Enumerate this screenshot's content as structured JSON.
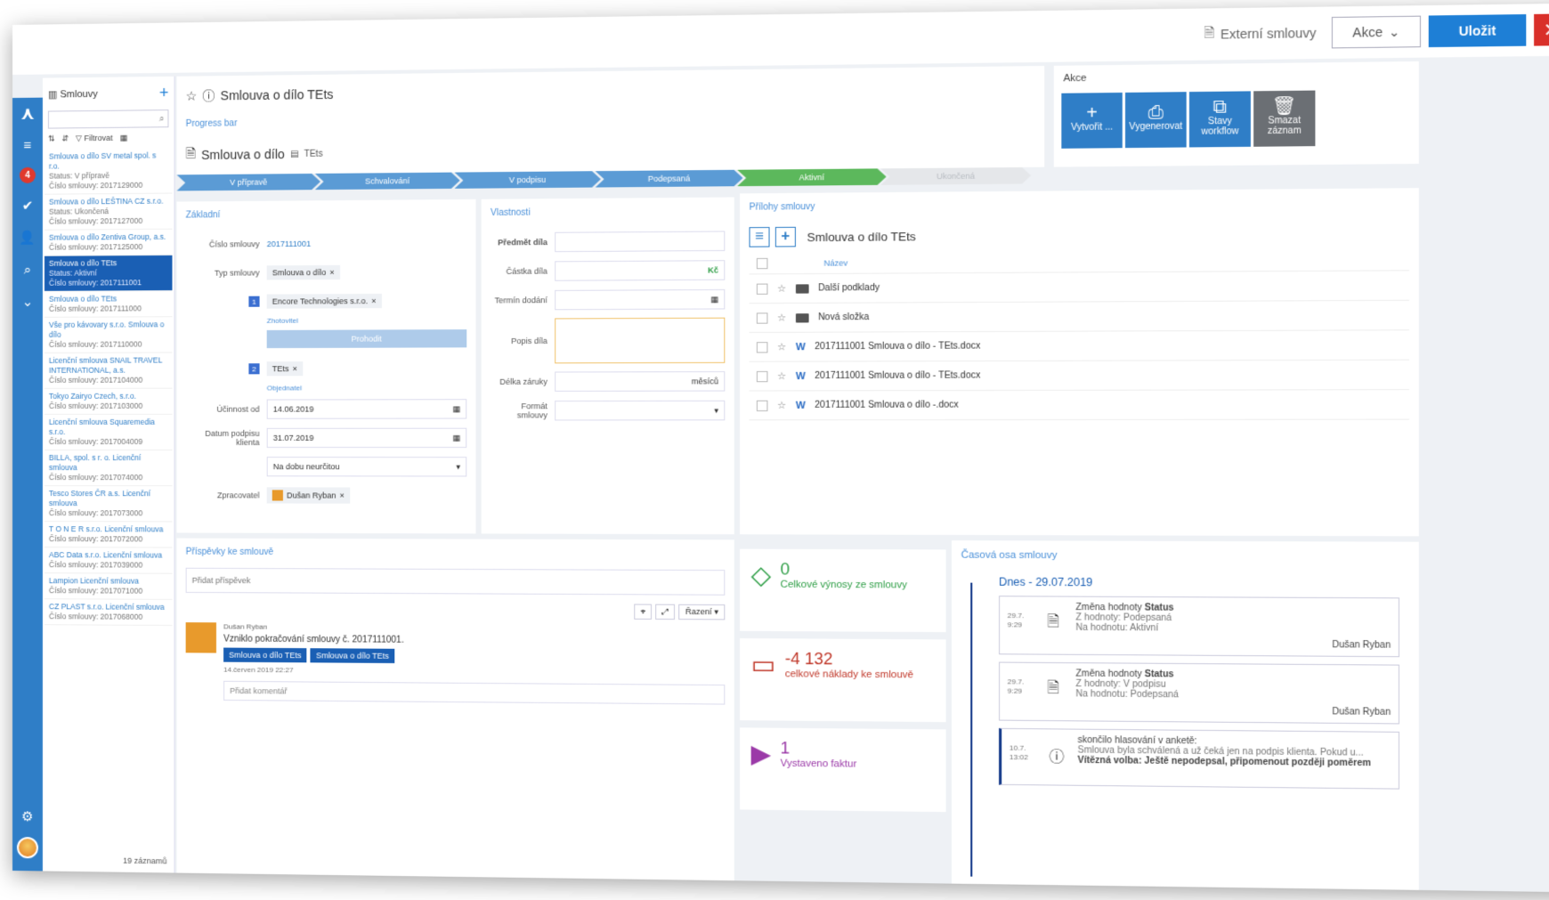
{
  "topbar": {
    "external_link": "Externí smlouvy",
    "akce_label": "Akce",
    "save_label": "Uložit",
    "close_label": "✕"
  },
  "rail": {
    "badge": "4"
  },
  "sidebar": {
    "title": "Smlouvy",
    "filter_label": "Filtrovat",
    "count": "19 záznamů",
    "items": [
      {
        "title": "Smlouva o dílo SV metal spol. s r.o.",
        "status": "Status: V přípravě",
        "number": "Číslo smlouvy: 2017129000"
      },
      {
        "title": "Smlouva o dílo LEŠTINA CZ s.r.o.",
        "status": "Status: Ukončená",
        "number": "Číslo smlouvy: 2017127000"
      },
      {
        "title": "Smlouva o dílo Zentiva Group, a.s.",
        "status": "",
        "number": "Číslo smlouvy: 2017125000"
      },
      {
        "title": "Smlouva o dílo TEts",
        "status": "Status: Aktivní",
        "number": "Číslo smlouvy: 2017111001"
      },
      {
        "title": "Smlouva o dílo TEts",
        "status": "",
        "number": "Číslo smlouvy: 2017111000"
      },
      {
        "title": "Vše pro kávovary s.r.o. Smlouva o dílo",
        "status": "",
        "number": "Číslo smlouvy: 2017110000"
      },
      {
        "title": "Licenční smlouva SNAIL TRAVEL INTERNATIONAL, a.s.",
        "status": "",
        "number": "Číslo smlouvy: 2017104000"
      },
      {
        "title": "Tokyo Zairyo Czech, s.r.o.",
        "status": "",
        "number": "Číslo smlouvy: 2017103000"
      },
      {
        "title": "Licenční smlouva Squaremedia s.r.o.",
        "status": "",
        "number": "Číslo smlouvy: 2017004009"
      },
      {
        "title": "BILLA, spol. s r. o. Licenční smlouva",
        "status": "",
        "number": "Číslo smlouvy: 2017074000"
      },
      {
        "title": "Tesco Stores ČR a.s. Licenční smlouva",
        "status": "",
        "number": "Číslo smlouvy: 2017073000"
      },
      {
        "title": "T O N E R s.r.o. Licenční smlouva",
        "status": "",
        "number": "Číslo smlouvy: 2017072000"
      },
      {
        "title": "ABC Data s.r.o. Licenční smlouva",
        "status": "",
        "number": "Číslo smlouvy: 2017039000"
      },
      {
        "title": "Lampion Licenční smlouva",
        "status": "",
        "number": "Číslo smlouvy: 2017071000"
      },
      {
        "title": "CZ PLAST s.r.o. Licenční smlouva",
        "status": "",
        "number": "Číslo smlouvy: 2017068000"
      }
    ]
  },
  "record": {
    "title": "Smlouva o dílo TEts",
    "progress_label": "Progress bar",
    "doc_type": "Smlouva o dílo",
    "doc_org": "TEts",
    "steps": [
      "V přípravě",
      "Schvalování",
      "V podpisu",
      "Podepsaná",
      "Aktivní",
      "Ukončená"
    ]
  },
  "akce": {
    "title": "Akce",
    "buttons": [
      {
        "label": "Vytvořit ...",
        "icon": "+"
      },
      {
        "label": "Vygenerovat",
        "icon": "⎙"
      },
      {
        "label": "Stavy workflow",
        "icon": "⧉"
      },
      {
        "label": "Smazat záznam",
        "icon": "🗑"
      }
    ]
  },
  "zakladni": {
    "title": "Základní",
    "cislo_label": "Číslo smlouvy",
    "cislo": "2017111001",
    "typ_label": "Typ smlouvy",
    "typ": "Smlouva o dílo",
    "party1": "Encore Technologies s.r.o.",
    "party1_role": "Zhotovitel",
    "swap": "Prohodit",
    "party2": "TEts",
    "party2_role": "Objednatel",
    "ucinnost_label": "Účinnost od",
    "ucinnost": "14.06.2019",
    "podpis_label": "Datum podpisu klienta",
    "podpis": "31.07.2019",
    "doba": "Na dobu neurčitou",
    "zpracovatel_label": "Zpracovatel",
    "zpracovatel": "Dušan Ryban"
  },
  "vlastnosti": {
    "title": "Vlastnosti",
    "predmet": "Předmět díla",
    "castka": "Částka díla",
    "currency": "Kč",
    "termin": "Termín dodání",
    "popis": "Popis díla",
    "zaruka": "Délka záruky",
    "zaruka_unit": "měsíců",
    "format": "Formát smlouvy"
  },
  "prilohy": {
    "title": "Přílohy smlouvy",
    "folder": "Smlouva o dílo TEts",
    "col_name": "Název",
    "files": [
      {
        "type": "folder",
        "name": "Další podklady"
      },
      {
        "type": "folder",
        "name": "Nová složka"
      },
      {
        "type": "word",
        "name": "2017111001 Smlouva o dílo - TEts.docx"
      },
      {
        "type": "word",
        "name": "2017111001 Smlouva o dílo - TEts.docx"
      },
      {
        "type": "word",
        "name": "2017111001 Smlouva o dílo -.docx"
      }
    ]
  },
  "prispevky": {
    "title": "Příspěvky ke smlouvě",
    "add_placeholder": "Přidat příspěvek",
    "sort": "Řazení",
    "author": "Dušan Ryban",
    "text": "Vzniklo pokračování smlouvy č. 2017111001.",
    "tag1": "Smlouva o dílo TEts",
    "tag2": "Smlouva o dílo TEts",
    "date": "14.červen 2019 22:27",
    "comment_placeholder": "Přidat komentář"
  },
  "stats": [
    {
      "value": "0",
      "label": "Celkové výnosy ze smlouvy",
      "color": "#2e9e46"
    },
    {
      "value": "-4 132",
      "label": "celkové náklady ke smlouvě",
      "color": "#c0392b"
    },
    {
      "value": "1",
      "label": "Vystaveno faktur",
      "color": "#9b3aa8"
    }
  ],
  "timeline": {
    "title": "Časová osa smlouvy",
    "today": "Dnes - 29.07.2019",
    "entries": [
      {
        "date": "29.7.",
        "time": "9:29",
        "title": "Změna hodnoty",
        "field": "Status",
        "from": "Z hodnoty: Podepsaná",
        "to": "Na hodnotu: Aktivní",
        "who": "Dušan Ryban"
      },
      {
        "date": "29.7.",
        "time": "9:29",
        "title": "Změna hodnoty",
        "field": "Status",
        "from": "Z hodnoty: V podpisu",
        "to": "Na hodnotu: Podepsaná",
        "who": "Dušan Ryban"
      },
      {
        "date": "10.7.",
        "time": "13:02",
        "title": "skončilo hlasování v anketě:",
        "field": "",
        "from": "Smlouva byla schválená a už čeká jen na podpis klienta. Pokud u...",
        "to": "Vítězná volba: Ještě nepodepsal, připomenout později poměrem",
        "who": ""
      }
    ]
  }
}
